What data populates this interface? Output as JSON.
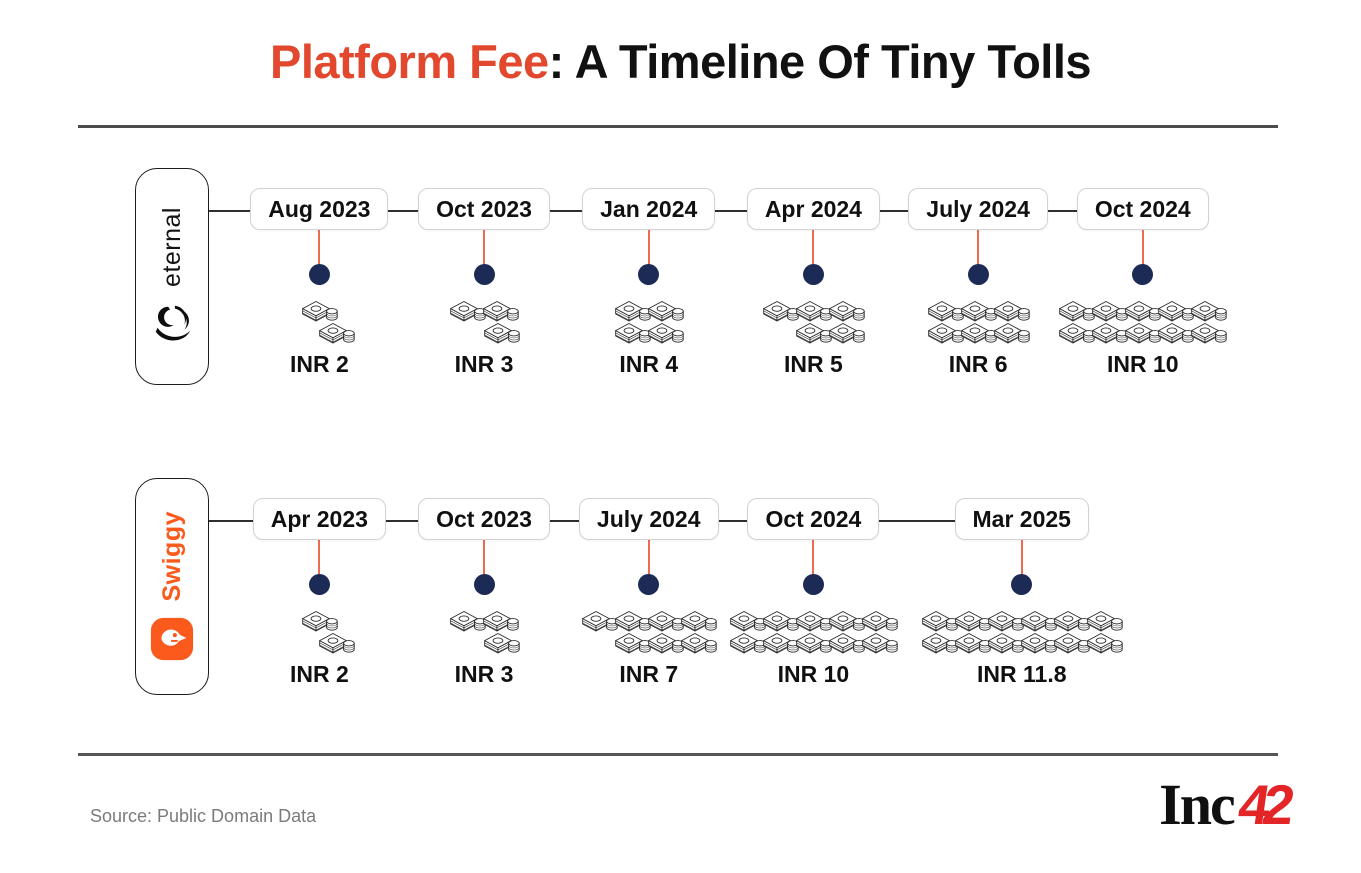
{
  "title": {
    "highlight": "Platform Fee",
    "rest": ": A Timeline Of Tiny Tolls"
  },
  "timelines": [
    {
      "brand": "eternal",
      "brand_color": "#131313",
      "events": [
        {
          "date": "Aug 2023",
          "fee": "INR 2",
          "money_stacks": 2
        },
        {
          "date": "Oct 2023",
          "fee": "INR 3",
          "money_stacks": 3
        },
        {
          "date": "Jan 2024",
          "fee": "INR 4",
          "money_stacks": 4
        },
        {
          "date": "Apr 2024",
          "fee": "INR 5",
          "money_stacks": 5
        },
        {
          "date": "July 2024",
          "fee": "INR 6",
          "money_stacks": 6
        },
        {
          "date": "Oct 2024",
          "fee": "INR 10",
          "money_stacks": 10
        }
      ]
    },
    {
      "brand": "Swiggy",
      "brand_color": "#fa5a1c",
      "events": [
        {
          "date": "Apr 2023",
          "fee": "INR 2",
          "money_stacks": 2
        },
        {
          "date": "Oct 2023",
          "fee": "INR 3",
          "money_stacks": 3
        },
        {
          "date": "July 2024",
          "fee": "INR 7",
          "money_stacks": 7
        },
        {
          "date": "Oct 2024",
          "fee": "INR 10",
          "money_stacks": 10
        },
        {
          "date": "Mar 2025",
          "fee": "INR 11.8",
          "money_stacks": 12
        }
      ]
    }
  ],
  "footer": {
    "source": "Source: Public Domain Data",
    "logo_text": "Inc",
    "logo_number": "42"
  },
  "colors": {
    "title_highlight": "#e2482e",
    "connector_red": "#ee6a55",
    "dot_navy": "#1c2b55",
    "swiggy_orange": "#fa5a1c",
    "logo_red": "#e42527",
    "divider_gray": "#4c4c4c",
    "source_gray": "#7b7b7b"
  },
  "chart_data": [
    {
      "type": "bar",
      "title": "Platform Fee: A Timeline Of Tiny Tolls",
      "series_name": "eternal",
      "categories": [
        "Aug 2023",
        "Oct 2023",
        "Jan 2024",
        "Apr 2024",
        "July 2024",
        "Oct 2024"
      ],
      "values": [
        2,
        3,
        4,
        5,
        6,
        10
      ],
      "unit": "INR",
      "note": "each money-stack pictogram = 1 INR"
    },
    {
      "type": "bar",
      "title": "Platform Fee: A Timeline Of Tiny Tolls",
      "series_name": "Swiggy",
      "categories": [
        "Apr 2023",
        "Oct 2023",
        "July 2024",
        "Oct 2024",
        "Mar 2025"
      ],
      "values": [
        2,
        3,
        7,
        10,
        11.8
      ],
      "unit": "INR",
      "note": "each money-stack pictogram = 1 INR"
    }
  ]
}
